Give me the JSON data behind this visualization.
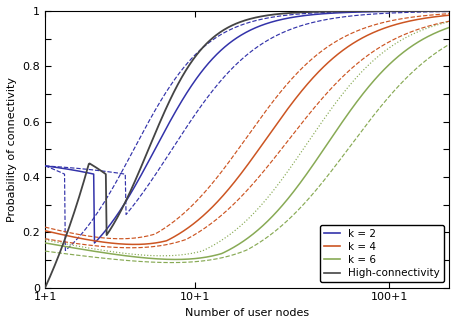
{
  "xlabel": "Number of user nodes",
  "ylabel": "Probability of connectivity",
  "xtick_labels": [
    "1+1",
    "10+1",
    "100+1"
  ],
  "xtick_positions": [
    2,
    11,
    101
  ],
  "ytick_vals": [
    0,
    0.1,
    0.2,
    0.3,
    0.4,
    0.5,
    0.6,
    0.7,
    0.8,
    0.9,
    1.0
  ],
  "ytick_labels": [
    "0",
    "",
    "0.2",
    "",
    "0.4",
    "",
    "0.6",
    "",
    "0.8",
    "",
    "1"
  ],
  "colors": {
    "k2": "#3333aa",
    "k4": "#cc5522",
    "k6": "#88aa55",
    "hc": "#444444"
  },
  "legend_labels": [
    "k = 2",
    "k = 4",
    "k = 6",
    "High-connectivity"
  ]
}
